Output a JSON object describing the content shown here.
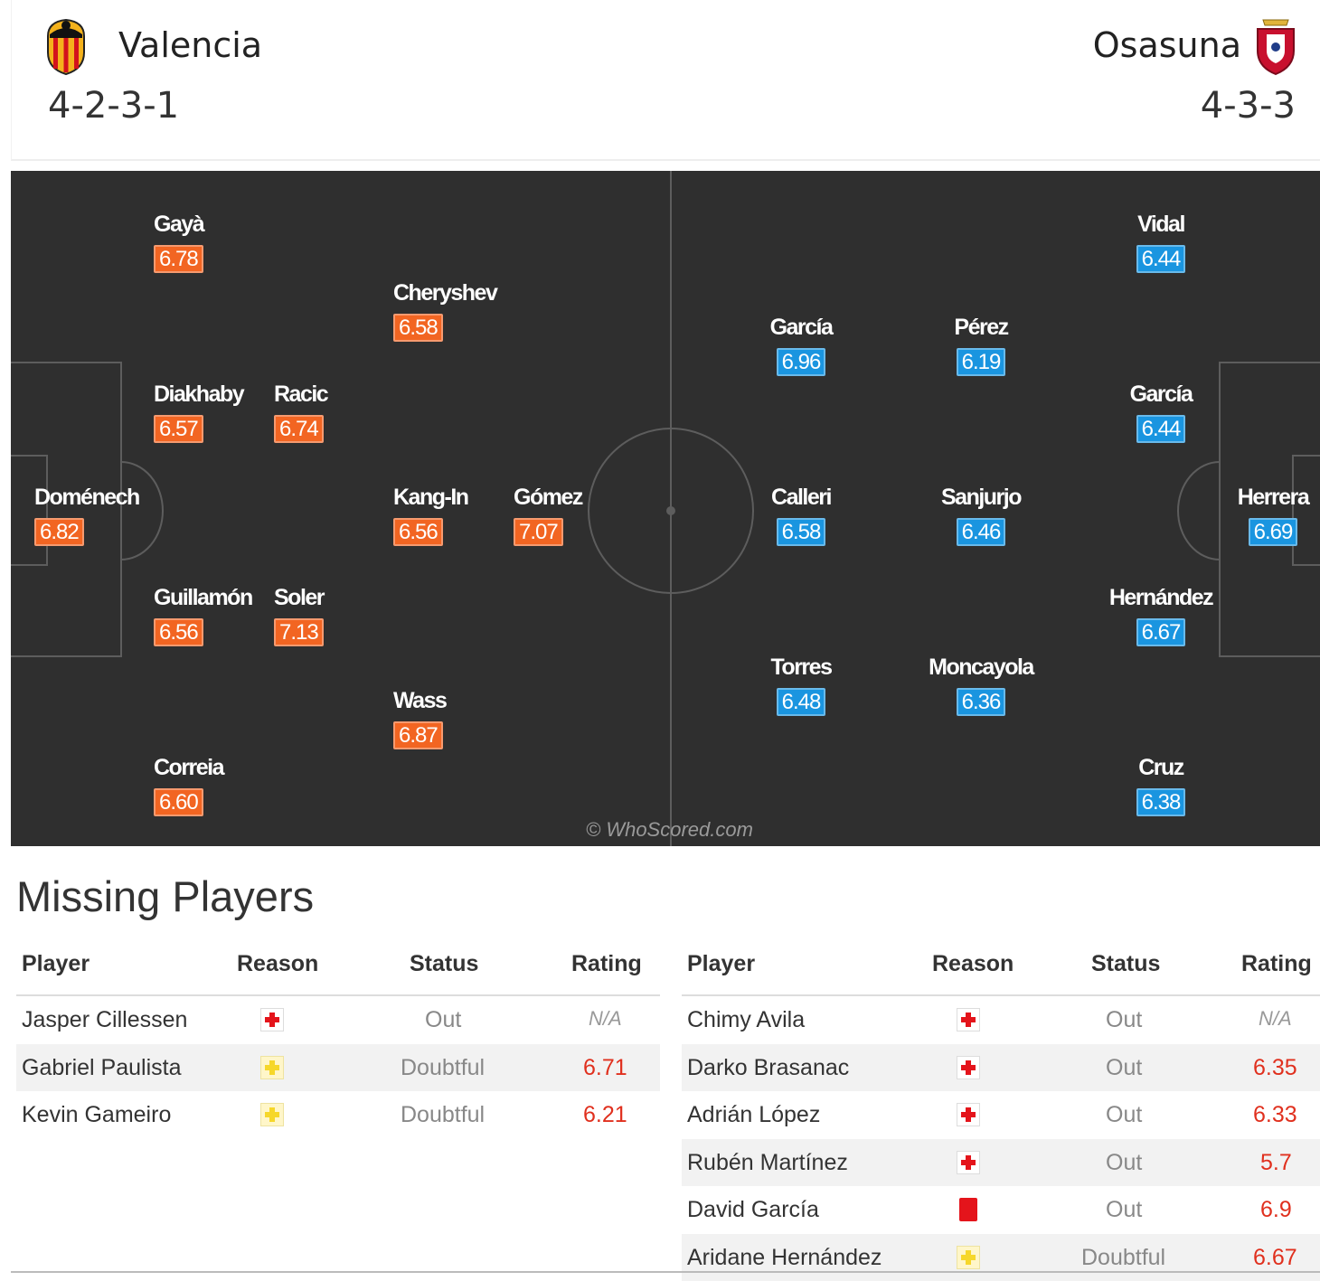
{
  "header": {
    "home": {
      "name": "Valencia",
      "formation": "4-2-3-1"
    },
    "away": {
      "name": "Osasuna",
      "formation": "4-3-3"
    }
  },
  "pitch": {
    "watermark": "© WhoScored.com",
    "home_players": [
      {
        "name": "Gayà",
        "rating": "6.78"
      },
      {
        "name": "Cheryshev",
        "rating": "6.58"
      },
      {
        "name": "Diakhaby",
        "rating": "6.57"
      },
      {
        "name": "Racic",
        "rating": "6.74"
      },
      {
        "name": "Doménech",
        "rating": "6.82"
      },
      {
        "name": "Kang-In",
        "rating": "6.56"
      },
      {
        "name": "Gómez",
        "rating": "7.07"
      },
      {
        "name": "Guillamón",
        "rating": "6.56"
      },
      {
        "name": "Soler",
        "rating": "7.13"
      },
      {
        "name": "Wass",
        "rating": "6.87"
      },
      {
        "name": "Correia",
        "rating": "6.60"
      }
    ],
    "away_players": [
      {
        "name": "Vidal",
        "rating": "6.44"
      },
      {
        "name": "García",
        "rating": "6.96"
      },
      {
        "name": "Pérez",
        "rating": "6.19"
      },
      {
        "name": "García",
        "rating": "6.44"
      },
      {
        "name": "Calleri",
        "rating": "6.58"
      },
      {
        "name": "Sanjurjo",
        "rating": "6.46"
      },
      {
        "name": "Herrera",
        "rating": "6.69"
      },
      {
        "name": "Hernández",
        "rating": "6.67"
      },
      {
        "name": "Torres",
        "rating": "6.48"
      },
      {
        "name": "Moncayola",
        "rating": "6.36"
      },
      {
        "name": "Cruz",
        "rating": "6.38"
      }
    ]
  },
  "missing": {
    "title": "Missing Players",
    "columns": {
      "player": "Player",
      "reason": "Reason",
      "status": "Status",
      "rating": "Rating"
    },
    "home": [
      {
        "player": "Jasper Cillessen",
        "reason": "injury-icon",
        "status": "Out",
        "rating": "N/A"
      },
      {
        "player": "Gabriel Paulista",
        "reason": "doubtful-icon",
        "status": "Doubtful",
        "rating": "6.71"
      },
      {
        "player": "Kevin Gameiro",
        "reason": "doubtful-icon",
        "status": "Doubtful",
        "rating": "6.21"
      }
    ],
    "away": [
      {
        "player": "Chimy Avila",
        "reason": "injury-icon",
        "status": "Out",
        "rating": "N/A"
      },
      {
        "player": "Darko Brasanac",
        "reason": "injury-icon",
        "status": "Out",
        "rating": "6.35"
      },
      {
        "player": "Adrián López",
        "reason": "injury-icon",
        "status": "Out",
        "rating": "6.33"
      },
      {
        "player": "Rubén Martínez",
        "reason": "injury-icon",
        "status": "Out",
        "rating": "5.7"
      },
      {
        "player": "David García",
        "reason": "red-card-icon",
        "status": "Out",
        "rating": "6.9"
      },
      {
        "player": "Aridane Hernández",
        "reason": "doubtful-icon",
        "status": "Doubtful",
        "rating": "6.67"
      }
    ]
  },
  "colors": {
    "home_rating_bg": "#f26522",
    "away_rating_bg": "#1a95e0",
    "pitch_bg": "#2f2f2f",
    "missing_rating_text": "#e0301e"
  }
}
